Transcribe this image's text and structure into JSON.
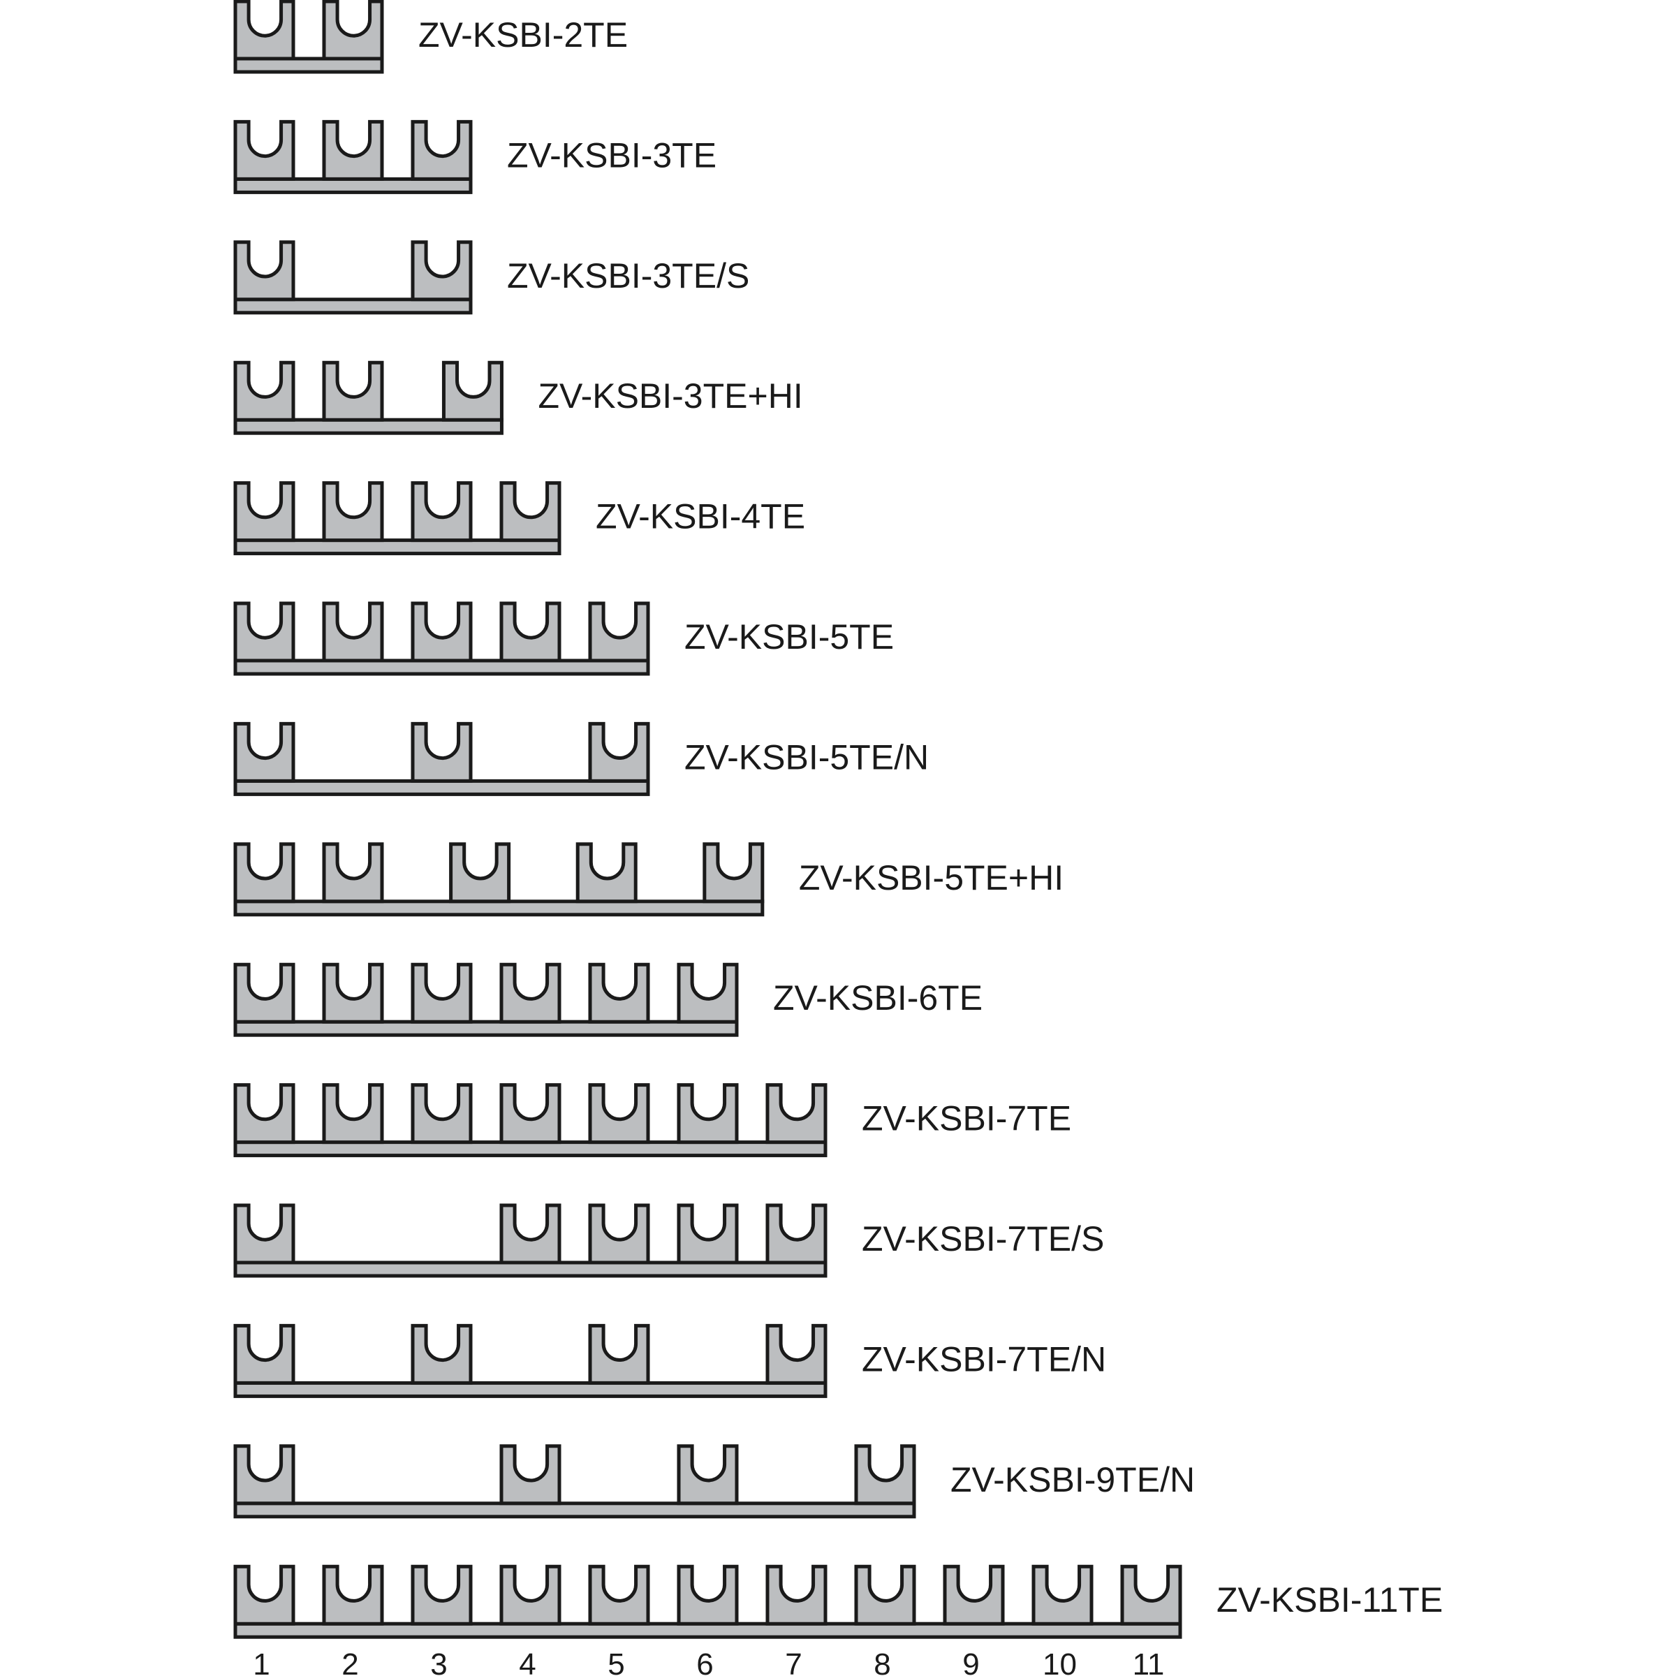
{
  "colors": {
    "fill": "#bcbec0",
    "stroke": "#1a1a1a"
  },
  "rows": [
    {
      "label": "ZV-KSBI-2TE",
      "slots": [
        1,
        2
      ]
    },
    {
      "label": "ZV-KSBI-3TE",
      "slots": [
        1,
        2,
        3
      ]
    },
    {
      "label": "ZV-KSBI-3TE/S",
      "slots": [
        1,
        3
      ]
    },
    {
      "label": "ZV-KSBI-3TE+HI",
      "slots": [
        1,
        2,
        3.35
      ]
    },
    {
      "label": "ZV-KSBI-4TE",
      "slots": [
        1,
        2,
        3,
        4
      ]
    },
    {
      "label": "ZV-KSBI-5TE",
      "slots": [
        1,
        2,
        3,
        4,
        5
      ]
    },
    {
      "label": "ZV-KSBI-5TE/N",
      "slots": [
        1,
        3,
        5
      ]
    },
    {
      "label": "ZV-KSBI-5TE+HI",
      "slots": [
        1,
        2,
        3.43,
        4.86,
        6.29
      ]
    },
    {
      "label": "ZV-KSBI-6TE",
      "slots": [
        1,
        2,
        3,
        4,
        5,
        6
      ]
    },
    {
      "label": "ZV-KSBI-7TE",
      "slots": [
        1,
        2,
        3,
        4,
        5,
        6,
        7
      ]
    },
    {
      "label": "ZV-KSBI-7TE/S",
      "slots": [
        1,
        4,
        5,
        6,
        7
      ]
    },
    {
      "label": "ZV-KSBI-7TE/N",
      "slots": [
        1,
        3,
        5,
        7
      ]
    },
    {
      "label": "ZV-KSBI-9TE/N",
      "slots": [
        1,
        4,
        6,
        8
      ]
    },
    {
      "label": "ZV-KSBI-11TE",
      "slots": [
        1,
        2,
        3,
        4,
        5,
        6,
        7,
        8,
        9,
        10,
        11
      ]
    }
  ],
  "scale_numbers": [
    "1",
    "2",
    "3",
    "4",
    "5",
    "6",
    "7",
    "8",
    "9",
    "10",
    "11"
  ]
}
